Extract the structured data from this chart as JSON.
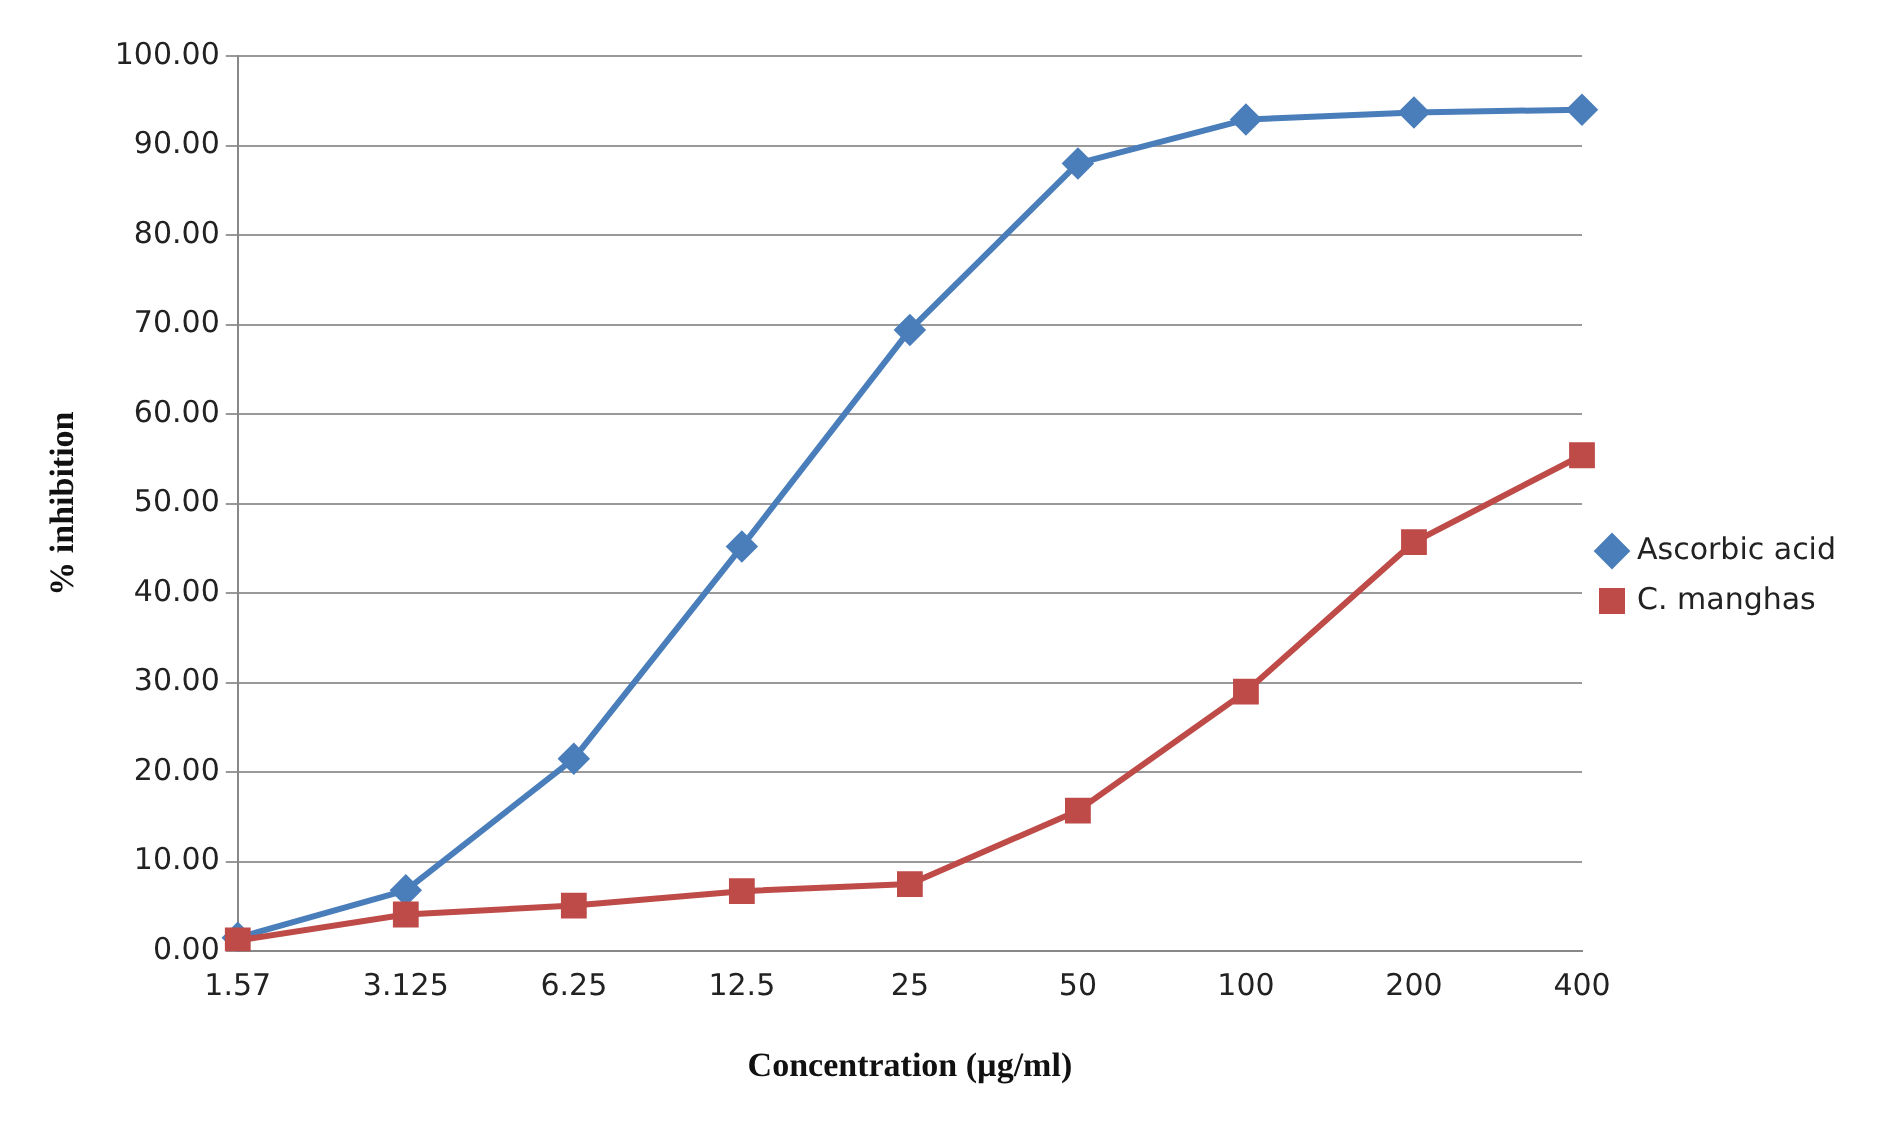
{
  "chart_data": {
    "type": "line",
    "xlabel": "Concentration (µg/ml)",
    "ylabel": "% inhibition",
    "categories": [
      "1.57",
      "3.125",
      "6.25",
      "12.5",
      "25",
      "50",
      "100",
      "200",
      "400"
    ],
    "series": [
      {
        "name": "Ascorbic acid",
        "color": "#4a7ebb",
        "marker": "diamond",
        "values": [
          1.5,
          6.8,
          21.5,
          45.2,
          69.4,
          88.0,
          92.9,
          93.7,
          94.0
        ]
      },
      {
        "name": "C. manghas",
        "color": "#be4b48",
        "marker": "square",
        "values": [
          1.2,
          4.1,
          5.1,
          6.7,
          7.5,
          15.7,
          29.0,
          45.7,
          55.4
        ]
      }
    ],
    "ylim": [
      0,
      100
    ],
    "yticks": [
      {
        "value": 0,
        "label": "0.00"
      },
      {
        "value": 10,
        "label": "10.00"
      },
      {
        "value": 20,
        "label": "20.00"
      },
      {
        "value": 30,
        "label": "30.00"
      },
      {
        "value": 40,
        "label": "40.00"
      },
      {
        "value": 50,
        "label": "50.00"
      },
      {
        "value": 60,
        "label": "60.00"
      },
      {
        "value": 70,
        "label": "70.00"
      },
      {
        "value": 80,
        "label": "80.00"
      },
      {
        "value": 90,
        "label": "90.00"
      },
      {
        "value": 100,
        "label": "100.00"
      }
    ],
    "grid": "y",
    "legend": "right",
    "line_style": "solid"
  }
}
